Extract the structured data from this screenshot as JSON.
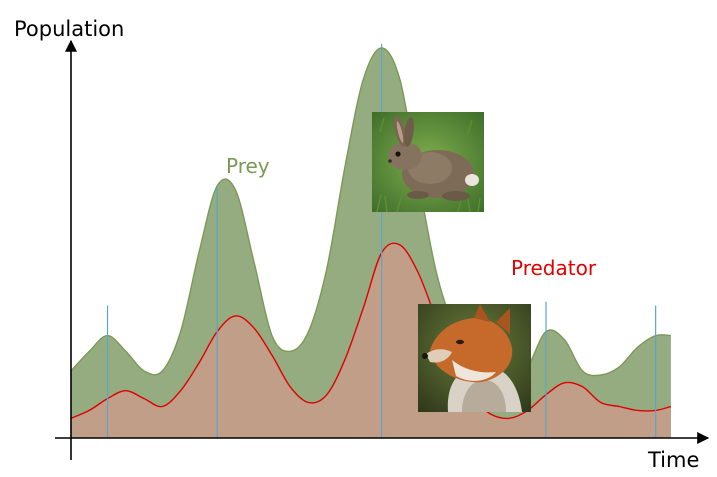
{
  "chart_data": {
    "type": "area",
    "xlabel": "Time",
    "ylabel": "Population",
    "xlim": [
      0,
      100
    ],
    "ylim": [
      0,
      100
    ],
    "grid": false,
    "axis_ticks": false,
    "series": [
      {
        "name": "Prey",
        "color": "#7a9a56",
        "fill": "#94ac80",
        "x": [
          0,
          3,
          6,
          9,
          12,
          15,
          18,
          21,
          24,
          27,
          30,
          33,
          36,
          39,
          42,
          45,
          48,
          51,
          54,
          57,
          60,
          63,
          66,
          69,
          72,
          75,
          78,
          81,
          84,
          87,
          90,
          93,
          96,
          98.5
        ],
        "values": [
          17,
          22,
          26,
          22,
          17,
          17,
          27,
          47,
          64,
          63,
          45,
          26,
          22,
          27,
          43,
          69,
          91,
          99,
          91,
          66,
          42,
          28,
          22,
          16,
          13,
          18,
          27,
          25,
          17,
          16,
          18,
          23,
          26,
          26
        ]
      },
      {
        "name": "Predator",
        "color": "#e00000",
        "fill": "#c49c88",
        "x": [
          0,
          3,
          6,
          9,
          12,
          15,
          18,
          21,
          24,
          27,
          30,
          33,
          36,
          39,
          42,
          45,
          48,
          51,
          54,
          57,
          60,
          63,
          66,
          69,
          72,
          75,
          78,
          81,
          84,
          87,
          90,
          93,
          96,
          98.5
        ],
        "values": [
          5,
          7,
          10,
          12,
          10,
          8,
          12,
          19,
          27,
          31,
          28,
          21,
          13,
          9,
          11,
          20,
          33,
          47,
          49,
          42,
          30,
          18,
          10,
          6,
          5,
          7,
          11,
          14,
          13,
          9,
          8,
          7,
          7,
          8
        ]
      }
    ],
    "images": [
      {
        "name": "rabbit-image",
        "depicts": "rabbit",
        "series": "Prey"
      },
      {
        "name": "fox-image",
        "depicts": "fox",
        "series": "Predator"
      }
    ]
  }
}
